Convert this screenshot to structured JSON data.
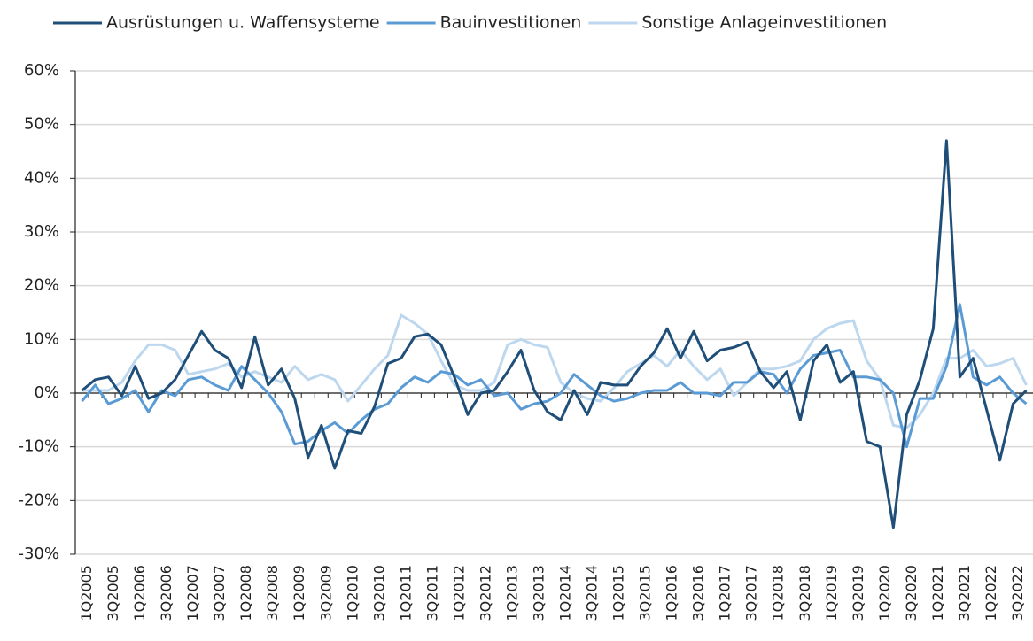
{
  "chart_data": {
    "type": "line",
    "categories": [
      "1Q2005",
      null,
      "3Q2005",
      null,
      "1Q2006",
      null,
      "3Q2006",
      null,
      "1Q2007",
      null,
      "3Q2007",
      null,
      "1Q2008",
      null,
      "3Q2008",
      null,
      "1Q2009",
      null,
      "3Q2009",
      null,
      "1Q2010",
      null,
      "3Q2010",
      null,
      "1Q2011",
      null,
      "3Q2011",
      null,
      "1Q2012",
      null,
      "3Q2012",
      null,
      "1Q2013",
      null,
      "3Q2013",
      null,
      "1Q2014",
      null,
      "3Q2014",
      null,
      "1Q2015",
      null,
      "3Q2015",
      null,
      "1Q2016",
      null,
      "3Q2016",
      null,
      "1Q2017",
      null,
      "3Q2017",
      null,
      "1Q2018",
      null,
      "3Q2018",
      null,
      "1Q2019",
      null,
      "3Q2019",
      null,
      "1Q2020",
      null,
      "3Q2020",
      null,
      "1Q2021",
      null,
      "3Q2021",
      null,
      "1Q2022",
      null,
      "3Q2022",
      null
    ],
    "series": [
      {
        "name": "Ausrüstungen u. Waffensysteme",
        "color": "#1f4e79",
        "values": [
          0.5,
          2.5,
          3,
          -0.5,
          5,
          -1,
          0,
          2.5,
          7,
          11.5,
          8,
          6.5,
          1,
          10.5,
          1.5,
          4.5,
          -1,
          -12,
          -6,
          -14,
          -7,
          -7.5,
          -2.5,
          5.5,
          6.5,
          10.5,
          11,
          9,
          3,
          -4,
          0,
          0.5,
          4,
          8,
          0.5,
          -3.5,
          -5,
          0.5,
          -4,
          2,
          1.5,
          1.5,
          5,
          7.5,
          12,
          6.5,
          11.5,
          6,
          8,
          8.5,
          9.5,
          4,
          1,
          4,
          -5,
          6,
          9,
          2,
          4,
          -9,
          -10,
          -25,
          -4,
          2.5,
          12,
          47,
          3,
          6.5,
          -3,
          -12.5,
          -2,
          0.5
        ]
      },
      {
        "name": "Bauinvestitionen",
        "color": "#5b9bd5",
        "values": [
          -1.5,
          1.5,
          -2,
          -1,
          0.5,
          -3.5,
          0.5,
          -0.5,
          2.5,
          3,
          1.5,
          0.5,
          5,
          2.5,
          0,
          -3.5,
          -9.5,
          -9,
          -7,
          -5.5,
          -7.5,
          -5,
          -3,
          -2,
          1,
          3,
          2,
          4,
          3.5,
          1.5,
          2.5,
          -0.5,
          0,
          -3,
          -2,
          -1.5,
          0,
          3.5,
          1.5,
          -0.5,
          -1.5,
          -1,
          0,
          0.5,
          0.5,
          2,
          0,
          0,
          -0.5,
          2,
          2,
          4,
          3.5,
          0,
          4.5,
          7,
          7.5,
          8,
          3,
          3,
          2.5,
          0,
          -10,
          -1,
          -1,
          5,
          16.5,
          3,
          1.5,
          3,
          0,
          -2
        ]
      },
      {
        "name": "Sonstige Anlageinvestitionen",
        "color": "#bdd7ee",
        "values": [
          0.5,
          0.5,
          0.5,
          2,
          6,
          9,
          9,
          8,
          3.5,
          4,
          4.5,
          5.5,
          3,
          4,
          3,
          2,
          5,
          2.5,
          3.5,
          2.5,
          -1.5,
          1.5,
          4.5,
          7,
          14.5,
          13,
          11,
          6,
          1.5,
          0.5,
          0.5,
          2,
          9,
          10,
          9,
          8.5,
          2,
          0,
          -1,
          -1.5,
          1,
          4,
          5.5,
          7,
          5,
          8,
          5,
          2.5,
          4.5,
          -0.5,
          2,
          4.5,
          4.5,
          5,
          6,
          10,
          12,
          13,
          13.5,
          6,
          2.5,
          -6,
          -6.5,
          -4,
          0,
          6.5,
          6.5,
          8,
          5,
          5.5,
          6.5,
          1.5
        ]
      }
    ],
    "ylim": [
      -30,
      60
    ],
    "yticks": [
      {
        "value": -30,
        "label": "-30%"
      },
      {
        "value": -20,
        "label": "-20%"
      },
      {
        "value": -10,
        "label": "-10%"
      },
      {
        "value": 0,
        "label": "0%"
      },
      {
        "value": 10,
        "label": "10%"
      },
      {
        "value": 20,
        "label": "20%"
      },
      {
        "value": 30,
        "label": "30%"
      },
      {
        "value": 40,
        "label": "40%"
      },
      {
        "value": 50,
        "label": "50%"
      },
      {
        "value": 60,
        "label": "60%"
      }
    ],
    "grid": true,
    "legend": "top"
  }
}
